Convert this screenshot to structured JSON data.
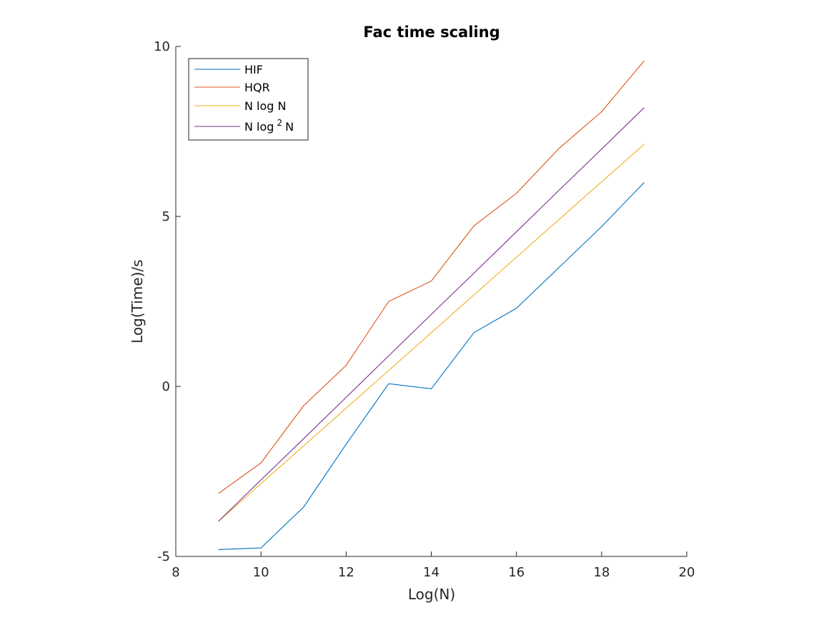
{
  "chart_data": {
    "type": "line",
    "title": "Fac time scaling",
    "xlabel": "Log(N)",
    "ylabel": "Log(Time)/s",
    "xlim": [
      8,
      20
    ],
    "ylim": [
      -5,
      10
    ],
    "xticks": [
      "8",
      "10",
      "12",
      "14",
      "16",
      "18",
      "20"
    ],
    "yticks": [
      "-5",
      "0",
      "5",
      "10"
    ],
    "grid": false,
    "legend_position": "top-left",
    "x": [
      9,
      10,
      11,
      12,
      13,
      14,
      15,
      16,
      17,
      18,
      19
    ],
    "series": [
      {
        "name": "HIF",
        "color": "#0072BD",
        "values": [
          -4.8,
          -4.75,
          -3.55,
          -1.7,
          0.08,
          -0.07,
          1.58,
          2.3,
          3.5,
          4.7,
          6.0
        ]
      },
      {
        "name": "HQR",
        "color": "#D95319",
        "values": [
          -3.15,
          -2.25,
          -0.57,
          0.62,
          2.5,
          3.1,
          4.72,
          5.68,
          7.0,
          8.08,
          9.58
        ]
      },
      {
        "name": "N log N",
        "color": "#EDB120",
        "values": [
          -3.97,
          -2.86,
          -1.75,
          -0.64,
          0.47,
          1.58,
          2.69,
          3.8,
          4.91,
          6.02,
          7.12
        ]
      },
      {
        "name": "N log",
        "name_superscript": "2",
        "name_suffix": "N",
        "color": "#7E2F8E",
        "values": [
          -3.97,
          -2.75,
          -1.54,
          -0.32,
          0.9,
          2.12,
          3.33,
          4.55,
          5.77,
          6.98,
          8.2
        ]
      }
    ]
  }
}
